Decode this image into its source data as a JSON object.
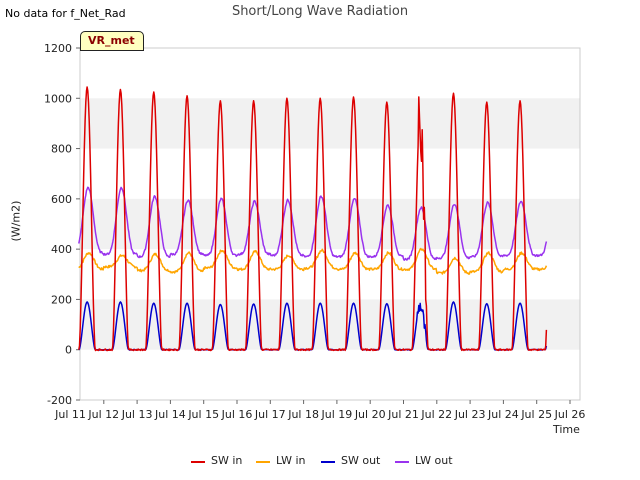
{
  "header": {
    "nodata": "No data for f_Net_Rad",
    "title": "Short/Long Wave Radiation",
    "tag": "VR_met"
  },
  "chart_data": {
    "type": "line",
    "title": "Short/Long Wave Radiation",
    "xlabel": "Time",
    "ylabel": "(W/m2)",
    "xlim": [
      "Jul 11",
      "Jul 26"
    ],
    "ylim": [
      -200,
      1200
    ],
    "yticks": [
      -200,
      0,
      200,
      400,
      600,
      800,
      1000,
      1200
    ],
    "xtick_labels": [
      "Jul 11",
      "Jul 12",
      "Jul 13",
      "Jul 14",
      "Jul 15",
      "Jul 16",
      "Jul 17",
      "Jul 18",
      "Jul 19",
      "Jul 20",
      "Jul 21",
      "Jul 22",
      "Jul 23",
      "Jul 24",
      "Jul 25",
      "Jul 26"
    ],
    "grid": "horizontal bands",
    "legend_position": "bottom",
    "days": [
      "Jul 11",
      "Jul 12",
      "Jul 13",
      "Jul 14",
      "Jul 15",
      "Jul 16",
      "Jul 17",
      "Jul 18",
      "Jul 19",
      "Jul 20",
      "Jul 21",
      "Jul 22",
      "Jul 23",
      "Jul 24"
    ],
    "series": [
      {
        "name": "SW in",
        "color": "#dd0000",
        "daily_peak": [
          1045,
          1035,
          1025,
          1010,
          990,
          990,
          1000,
          1000,
          1005,
          985,
          930,
          1020,
          985,
          990
        ],
        "night_value": 0
      },
      {
        "name": "LW in",
        "color": "#ffa500",
        "daily_max": [
          385,
          375,
          380,
          385,
          395,
          390,
          375,
          395,
          385,
          385,
          400,
          365,
          385,
          385
        ],
        "daily_min": [
          320,
          330,
          315,
          310,
          325,
          320,
          320,
          325,
          320,
          320,
          320,
          305,
          310,
          320
        ]
      },
      {
        "name": "SW out",
        "color": "#0000cc",
        "daily_peak": [
          190,
          190,
          185,
          185,
          180,
          182,
          185,
          185,
          185,
          183,
          175,
          190,
          183,
          185
        ],
        "night_value": 0
      },
      {
        "name": "LW out",
        "color": "#9933ee",
        "daily_max": [
          645,
          645,
          610,
          595,
          600,
          590,
          595,
          610,
          600,
          575,
          565,
          580,
          585,
          590
        ],
        "daily_min": [
          385,
          380,
          370,
          380,
          375,
          380,
          375,
          370,
          370,
          370,
          360,
          365,
          370,
          375
        ]
      }
    ]
  }
}
